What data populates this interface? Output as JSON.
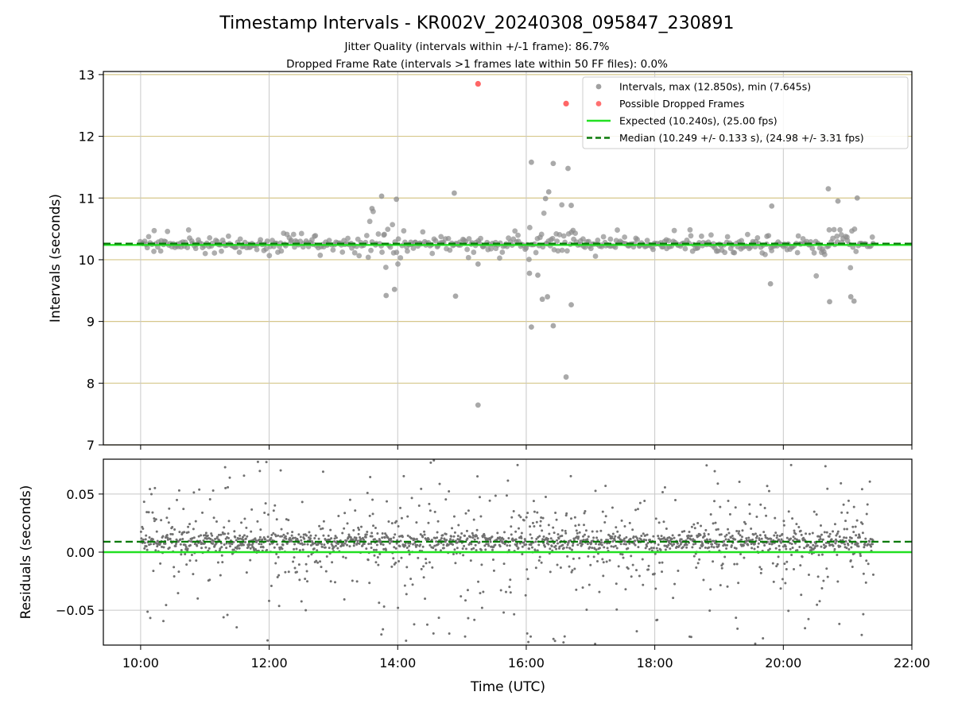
{
  "chart_data": {
    "type": "scatter",
    "title": "Timestamp Intervals - KR002V_20240308_095847_230891",
    "subtitle_lines": [
      "Jitter Quality (intervals within +/-1 frame): 86.7%",
      "Dropped Frame Rate (intervals >1 frames late within 50 FF files): 0.0%"
    ],
    "xlabel": "Time (UTC)",
    "x_tick_labels": [
      "10:00",
      "12:00",
      "14:00",
      "16:00",
      "18:00",
      "20:00",
      "22:00"
    ],
    "xlim_hours": [
      9.42,
      22.0
    ],
    "data_x_range_hours": [
      10.0,
      21.4
    ],
    "top_panel": {
      "ylabel": "Intervals (seconds)",
      "ylim": [
        7,
        13.05
      ],
      "y_ticks": [
        7,
        8,
        9,
        10,
        11,
        12,
        13
      ],
      "y_tick_labels": [
        "7",
        "8",
        "9",
        "10",
        "11",
        "12",
        "13"
      ],
      "expected": 10.24,
      "median": 10.249,
      "series": [
        {
          "name": "Intervals, max (12.850s), min (7.645s)",
          "color": "#808080",
          "max": 12.85,
          "min": 7.645
        },
        {
          "name": "Possible Dropped Frames",
          "color": "#ff4040",
          "points": [
            [
              15.25,
              12.85
            ],
            [
              16.62,
              12.53
            ]
          ]
        }
      ],
      "outliers": [
        [
          15.25,
          7.645
        ],
        [
          16.62,
          8.1
        ],
        [
          16.08,
          8.91
        ],
        [
          16.42,
          8.93
        ],
        [
          16.08,
          11.58
        ],
        [
          16.42,
          11.56
        ],
        [
          16.65,
          11.48
        ],
        [
          16.35,
          11.1
        ],
        [
          16.3,
          10.99
        ],
        [
          16.7,
          10.88
        ],
        [
          15.25,
          9.93
        ],
        [
          16.7,
          9.27
        ],
        [
          16.25,
          9.36
        ],
        [
          16.33,
          9.4
        ],
        [
          13.98,
          10.98
        ],
        [
          13.75,
          11.03
        ],
        [
          14.88,
          11.08
        ],
        [
          20.7,
          11.15
        ],
        [
          21.15,
          11.0
        ],
        [
          20.85,
          10.95
        ],
        [
          19.82,
          10.87
        ],
        [
          13.6,
          10.83
        ],
        [
          13.82,
          9.42
        ],
        [
          13.95,
          9.52
        ],
        [
          14.9,
          9.41
        ],
        [
          20.72,
          9.32
        ],
        [
          21.1,
          9.33
        ],
        [
          21.05,
          9.4
        ],
        [
          19.8,
          9.61
        ],
        [
          16.18,
          9.75
        ],
        [
          16.05,
          9.78
        ]
      ],
      "legend": {
        "placement": "top-right",
        "entries": [
          {
            "label": "Intervals, max (12.850s), min (7.645s)",
            "kind": "marker",
            "color": "#808080"
          },
          {
            "label": "Possible Dropped Frames",
            "kind": "marker",
            "color": "#ff4040"
          },
          {
            "label": "Expected (10.240s), (25.00 fps)",
            "kind": "line",
            "color": "#22e022"
          },
          {
            "label": "Median (10.249 +/- 0.133 s), (24.98 +/- 3.31 fps)",
            "kind": "dashed",
            "color": "#0a7a0a"
          }
        ]
      }
    },
    "bottom_panel": {
      "ylabel": "Residuals (seconds)",
      "ylim": [
        -0.08,
        0.08
      ],
      "y_ticks": [
        -0.05,
        0.0,
        0.05
      ],
      "y_tick_labels": [
        "−0.05",
        "0.00",
        "0.05"
      ],
      "expected": 0.0,
      "median": 0.009,
      "series_color": "#707070"
    },
    "grid": true,
    "colors": {
      "grid_x": "#c8c8c8",
      "grid_y_top": "#d6c78a",
      "grid_y_bottom": "#c8c8c8",
      "expected": "#22e022",
      "median": "#0a7a0a"
    }
  }
}
